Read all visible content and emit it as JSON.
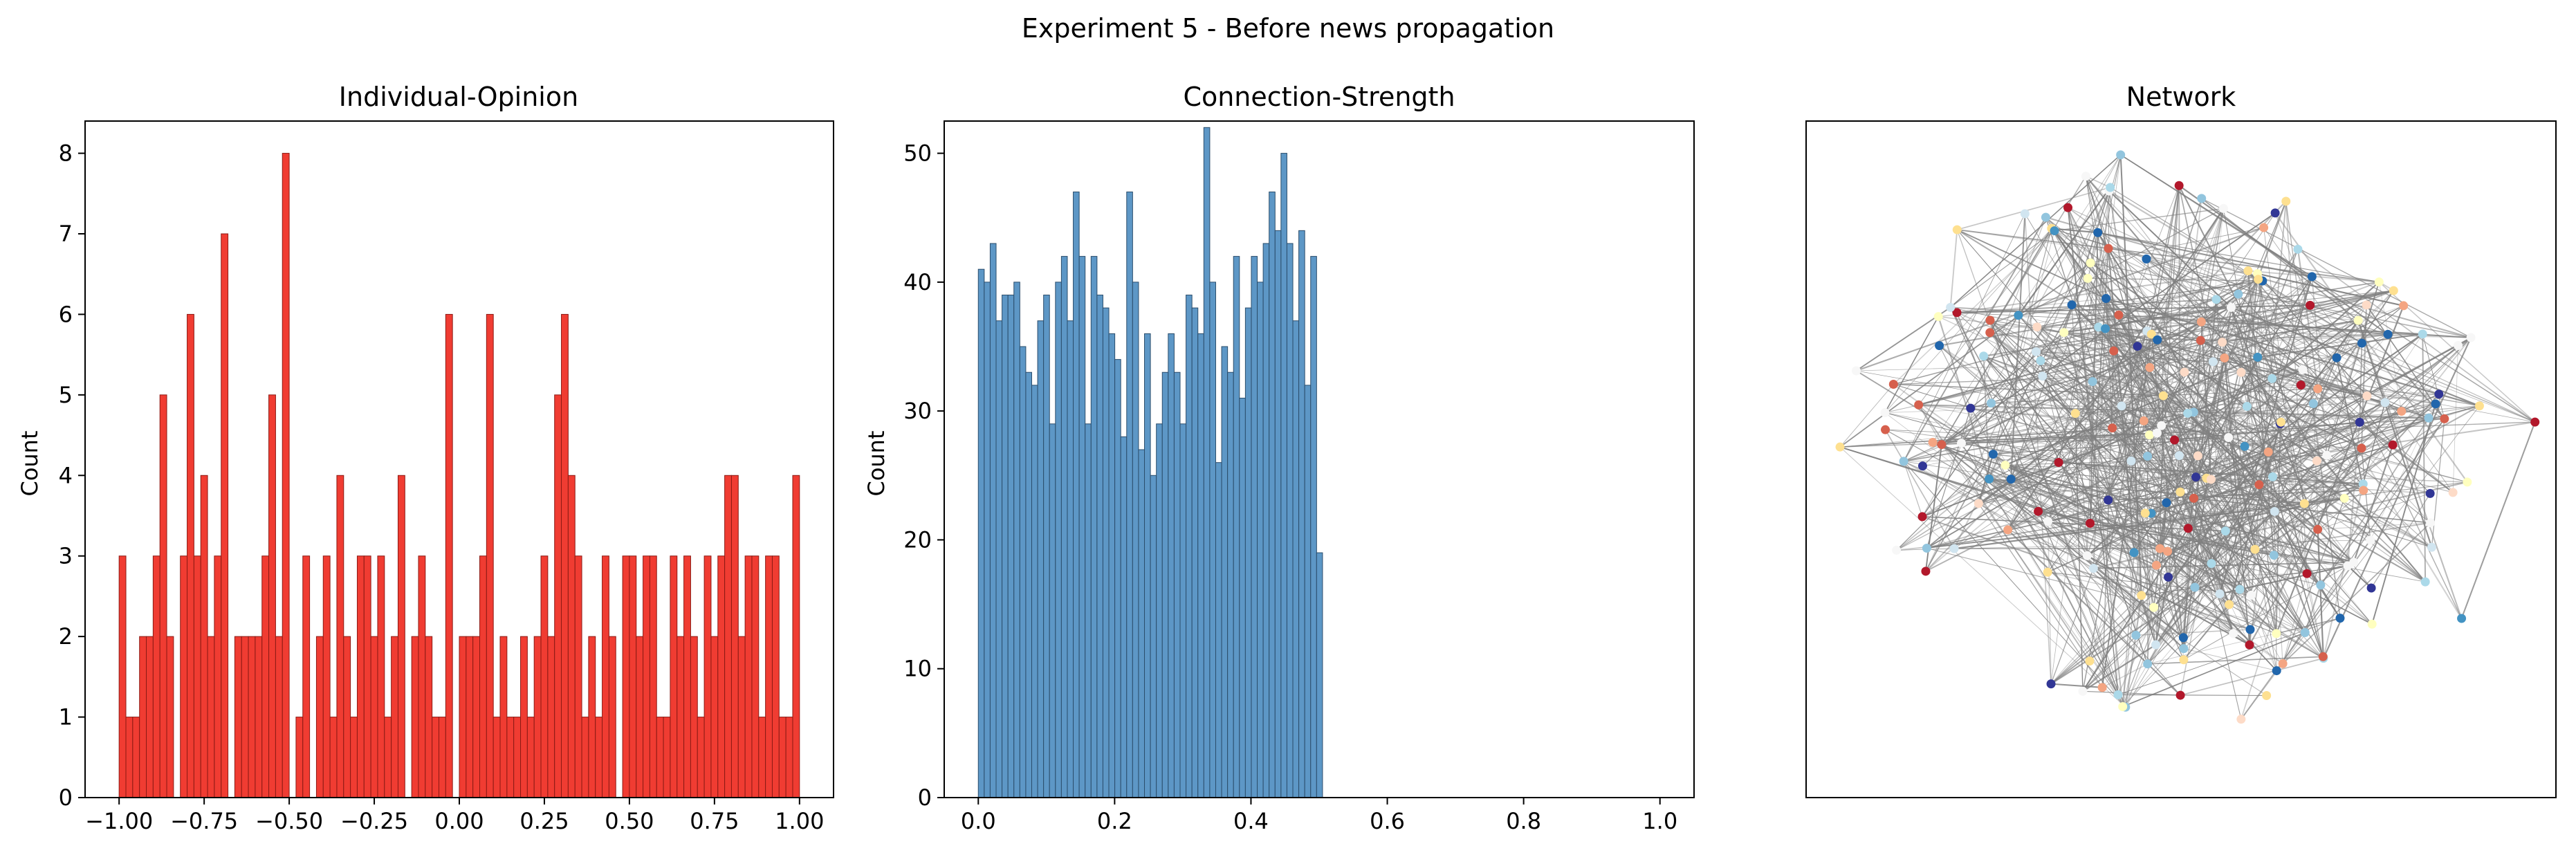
{
  "figure": {
    "suptitle": "Experiment 5 - Before news propagation"
  },
  "chart_data": [
    {
      "type": "bar",
      "subtype": "histogram",
      "title": "Individual-Opinion",
      "xlabel": "",
      "ylabel": "Count",
      "xlim": [
        -1.1,
        1.1
      ],
      "ylim": [
        0,
        8.4
      ],
      "bin_range": [
        -1.0,
        1.0
      ],
      "bar_color": "#f03c32",
      "edge_color": "#8b1a14",
      "xticks": [
        -1.0,
        -0.75,
        -0.5,
        -0.25,
        0.0,
        0.25,
        0.5,
        0.75,
        1.0
      ],
      "xtick_labels": [
        "−1.00",
        "−0.75",
        "−0.50",
        "−0.25",
        "0.00",
        "0.25",
        "0.50",
        "0.75",
        "1.00"
      ],
      "yticks": [
        0,
        1,
        2,
        3,
        4,
        5,
        6,
        7,
        8
      ],
      "ytick_labels": [
        "0",
        "1",
        "2",
        "3",
        "4",
        "5",
        "6",
        "7",
        "8"
      ],
      "values": [
        3,
        1,
        1,
        2,
        2,
        3,
        5,
        2,
        0,
        3,
        6,
        3,
        4,
        2,
        3,
        7,
        0,
        2,
        2,
        2,
        2,
        3,
        5,
        2,
        8,
        0,
        1,
        3,
        0,
        2,
        3,
        1,
        4,
        2,
        1,
        3,
        3,
        2,
        3,
        1,
        2,
        4,
        0,
        2,
        3,
        2,
        1,
        1,
        6,
        0,
        2,
        2,
        2,
        3,
        6,
        1,
        2,
        1,
        1,
        2,
        1,
        2,
        3,
        2,
        5,
        6,
        4,
        3,
        1,
        2,
        1,
        3,
        2,
        0,
        3,
        3,
        2,
        3,
        3,
        1,
        1,
        3,
        2,
        3,
        2,
        1,
        3,
        2,
        3,
        4,
        4,
        2,
        3,
        3,
        1,
        3,
        3,
        1,
        1,
        4
      ]
    },
    {
      "type": "bar",
      "subtype": "histogram",
      "title": "Connection-Strength",
      "xlabel": "",
      "ylabel": "Count",
      "xlim": [
        -0.05,
        1.05
      ],
      "ylim": [
        0,
        52.5
      ],
      "bin_range": [
        0.0,
        0.505
      ],
      "bar_color": "#5d97c6",
      "edge_color": "#2b4d6b",
      "xticks": [
        0.0,
        0.2,
        0.4,
        0.6,
        0.8,
        1.0
      ],
      "xtick_labels": [
        "0.0",
        "0.2",
        "0.4",
        "0.6",
        "0.8",
        "1.0"
      ],
      "yticks": [
        0,
        10,
        20,
        30,
        40,
        50
      ],
      "ytick_labels": [
        "0",
        "10",
        "20",
        "30",
        "40",
        "50"
      ],
      "values": [
        41,
        40,
        43,
        37,
        39,
        39,
        40,
        35,
        33,
        32,
        37,
        39,
        29,
        40,
        42,
        37,
        47,
        42,
        29,
        42,
        39,
        38,
        36,
        34,
        28,
        47,
        40,
        27,
        36,
        25,
        29,
        33,
        36,
        33,
        29,
        39,
        38,
        36,
        52,
        40,
        26,
        35,
        33,
        42,
        31,
        38,
        42,
        40,
        43,
        47,
        44,
        50,
        43,
        37,
        44,
        32,
        42,
        19
      ]
    },
    {
      "type": "network",
      "title": "Network",
      "node_count": 220,
      "edge_color": "#808080",
      "node_colors": [
        "#b2182b",
        "#d6604d",
        "#f4a582",
        "#fddbc7",
        "#f7f7f7",
        "#d1e5f0",
        "#92c5de",
        "#4393c3",
        "#2166ac",
        "#313695",
        "#fee090",
        "#ffffbf",
        "#abd9e9"
      ]
    }
  ]
}
